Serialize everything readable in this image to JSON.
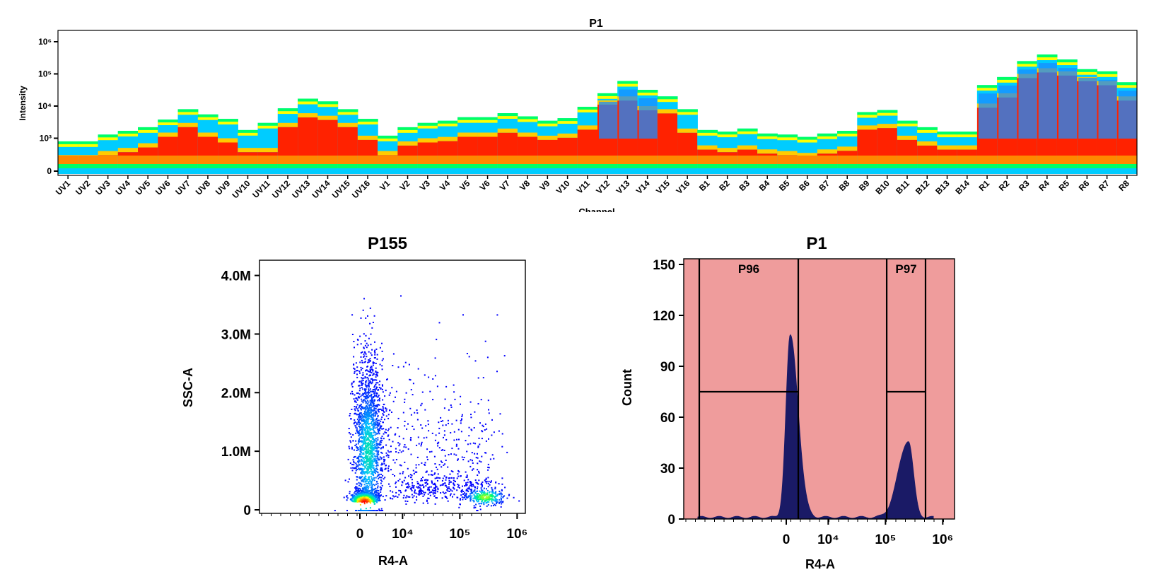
{
  "chart_data": [
    {
      "type": "heatmap",
      "title": "P1",
      "xlabel": "Channel",
      "ylabel": "Intensity",
      "y_scale": "log",
      "y_ticks": [
        "0",
        "10³",
        "10⁴",
        "10⁵",
        "10⁶"
      ],
      "categories": [
        "UV1",
        "UV2",
        "UV3",
        "UV4",
        "UV5",
        "UV6",
        "UV7",
        "UV8",
        "UV9",
        "UV10",
        "UV11",
        "UV12",
        "UV13",
        "UV14",
        "UV15",
        "UV16",
        "V1",
        "V2",
        "V3",
        "V4",
        "V5",
        "V6",
        "V7",
        "V8",
        "V9",
        "V10",
        "V11",
        "V12",
        "V13",
        "V14",
        "V15",
        "V16",
        "B1",
        "B2",
        "B3",
        "B4",
        "B5",
        "B6",
        "B7",
        "B8",
        "B9",
        "B10",
        "B11",
        "B12",
        "B13",
        "B14",
        "R1",
        "R2",
        "R3",
        "R4",
        "R5",
        "R6",
        "R7",
        "R8"
      ],
      "upper_bound": [
        800,
        800,
        1300,
        1700,
        2200,
        3800,
        8000,
        5500,
        4000,
        1800,
        3000,
        8500,
        17000,
        14000,
        8000,
        4000,
        1200,
        2200,
        3000,
        3500,
        4500,
        4500,
        6000,
        4800,
        3500,
        4200,
        9500,
        25000,
        60000,
        32000,
        20000,
        8000,
        1800,
        1600,
        2000,
        1400,
        1300,
        1100,
        1400,
        1700,
        6500,
        7500,
        3500,
        2200,
        1600,
        1600,
        45000,
        80000,
        250000,
        400000,
        280000,
        140000,
        120000,
        55000
      ],
      "core_level": [
        300,
        300,
        400,
        500,
        700,
        1500,
        3000,
        1500,
        1000,
        500,
        500,
        3000,
        6000,
        5000,
        3000,
        1200,
        400,
        800,
        1000,
        1100,
        1500,
        1500,
        2000,
        1500,
        1200,
        1400,
        2500,
        15000,
        20000,
        10000,
        8000,
        2000,
        600,
        500,
        600,
        450,
        400,
        350,
        450,
        550,
        2500,
        2800,
        1200,
        800,
        600,
        600,
        12000,
        25000,
        100000,
        150000,
        120000,
        80000,
        60000,
        20000
      ],
      "colors": {
        "low": "#0000ff",
        "mid": "#00c0ff",
        "high": "#ff0000"
      }
    },
    {
      "type": "scatter",
      "title": "P155",
      "xlabel": "R4-A",
      "ylabel": "SSC-A",
      "x_scale": "biexponential",
      "x_ticks": [
        "0",
        "10⁴",
        "10⁵",
        "10⁶"
      ],
      "y_ticks": [
        "0",
        "1.0M",
        "2.0M",
        "3.0M",
        "4.0M"
      ],
      "ylim": [
        0,
        4200000
      ],
      "populations": [
        {
          "x_center": 2000,
          "y_center": 1200000,
          "density": "high"
        },
        {
          "x_center": 800,
          "y_center": 150000,
          "density": "very-high"
        },
        {
          "x_center": 280000,
          "y_center": 250000,
          "density": "medium"
        }
      ],
      "colors": {
        "sparse": "#0000ff",
        "dense": "#ff0000"
      }
    },
    {
      "type": "area",
      "title": "P1",
      "xlabel": "R4-A",
      "ylabel": "Count",
      "x_scale": "biexponential",
      "x_ticks": [
        "0",
        "10⁴",
        "10⁵",
        "10⁶"
      ],
      "y_ticks": [
        "0",
        "30",
        "60",
        "90",
        "120",
        "150"
      ],
      "ylim": [
        0,
        150
      ],
      "peaks": [
        {
          "x": 1000,
          "count": 107
        },
        {
          "x": 250000,
          "count": 45
        }
      ],
      "gates": [
        {
          "name": "P96",
          "x_range": [
            -1000,
            3000
          ],
          "level": 75
        },
        {
          "name": "P97",
          "x_range": [
            105000,
            500000
          ],
          "level": 75
        }
      ],
      "colors": {
        "background": "#ef9c9c",
        "fill": "#1a1a66"
      }
    }
  ]
}
